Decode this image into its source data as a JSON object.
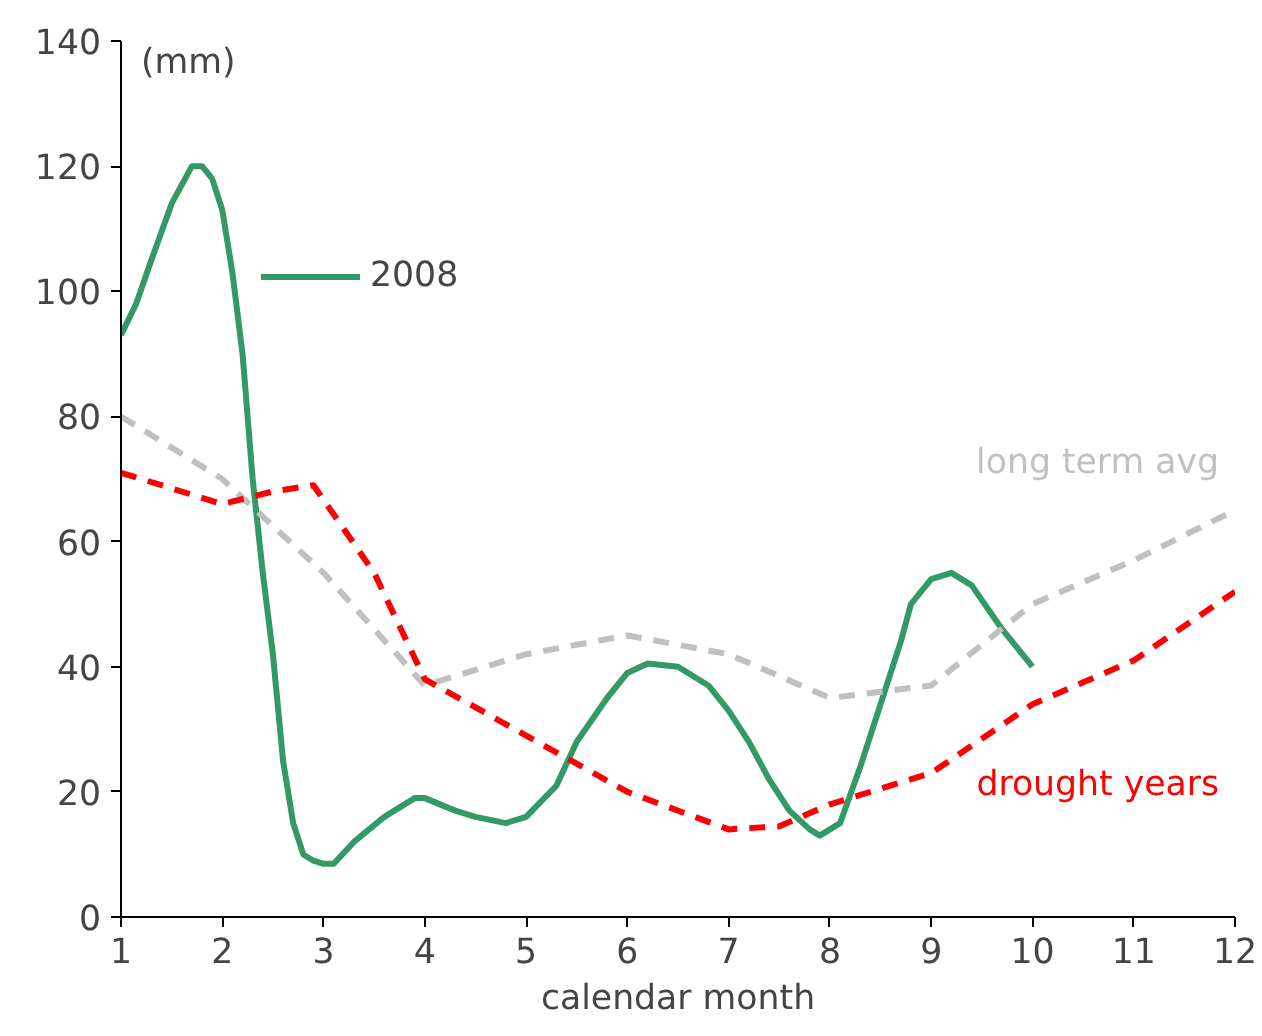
{
  "chart_data": {
    "type": "line",
    "xlabel": "calendar month",
    "ylabel": "(mm)",
    "xlim": [
      1,
      12
    ],
    "ylim": [
      0,
      140
    ],
    "xticks": [
      1,
      2,
      3,
      4,
      5,
      6,
      7,
      8,
      9,
      10,
      11,
      12
    ],
    "yticks": [
      0,
      20,
      40,
      60,
      80,
      100,
      120,
      140
    ],
    "grid": false,
    "legend": "top left",
    "series": [
      {
        "name": "2008",
        "color": "#339966",
        "line_style": "solid",
        "x": [
          1,
          1.15,
          1.3,
          1.5,
          1.7,
          1.8,
          1.9,
          2.0,
          2.1,
          2.2,
          2.3,
          2.4,
          2.5,
          2.6,
          2.7,
          2.8,
          2.9,
          3.0,
          3.1,
          3.3,
          3.6,
          3.9,
          4.0,
          4.3,
          4.5,
          4.8,
          5.0,
          5.3,
          5.5,
          5.8,
          6.0,
          6.2,
          6.5,
          6.8,
          7.0,
          7.2,
          7.4,
          7.6,
          7.8,
          7.9,
          8.1,
          8.3,
          8.5,
          8.7,
          8.8,
          9.0,
          9.2,
          9.4,
          9.7,
          10.0
        ],
        "values": [
          93,
          98,
          105,
          114,
          120,
          120,
          118,
          113,
          103,
          90,
          70,
          55,
          42,
          25,
          15,
          10,
          9,
          8.5,
          8.5,
          12,
          16,
          19,
          19,
          17,
          16,
          15,
          16,
          21,
          28,
          35,
          39,
          40.5,
          40,
          37,
          33,
          28,
          22,
          17,
          14,
          13,
          15,
          24,
          34,
          44,
          50,
          54,
          55,
          53,
          46,
          40
        ]
      },
      {
        "name": "long term avg",
        "color": "#c0c0c0",
        "line_style": "dashed",
        "x": [
          1,
          2,
          3,
          4,
          5,
          6,
          7,
          8,
          9,
          10,
          11,
          12
        ],
        "values": [
          80,
          70,
          55,
          37,
          42,
          45,
          42,
          35,
          37,
          50,
          57,
          65
        ]
      },
      {
        "name": "drought years",
        "color": "#ff0000",
        "line_style": "dashed",
        "x": [
          1,
          2,
          2.5,
          2.9,
          3.5,
          4,
          5,
          6,
          7,
          7.5,
          8,
          9,
          10,
          11,
          12
        ],
        "values": [
          71,
          66,
          68,
          69,
          55,
          38,
          29,
          20,
          14,
          14.5,
          18,
          23,
          34,
          41,
          52
        ]
      }
    ]
  }
}
